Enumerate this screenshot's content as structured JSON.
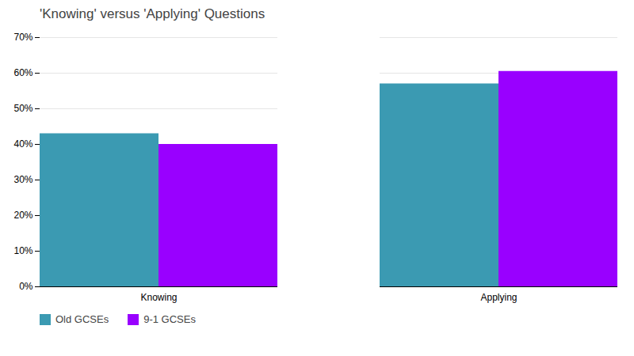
{
  "chart_data": {
    "type": "bar",
    "title": "'Knowing' versus 'Applying' Questions",
    "categories": [
      "Knowing",
      "Applying"
    ],
    "series": [
      {
        "name": "Old GCSEs",
        "values": [
          0.43,
          0.57
        ],
        "color": "#3b9ab2"
      },
      {
        "name": "9-1 GCSEs",
        "values": [
          0.4,
          0.605
        ],
        "color": "#9900ff"
      }
    ],
    "ylim": [
      0,
      0.7
    ],
    "yticks": [
      {
        "value": 0.0,
        "label": "0%"
      },
      {
        "value": 0.1,
        "label": "10%"
      },
      {
        "value": 0.2,
        "label": "20%"
      },
      {
        "value": 0.3,
        "label": "30%"
      },
      {
        "value": 0.4,
        "label": "40%"
      },
      {
        "value": 0.5,
        "label": "50%"
      },
      {
        "value": 0.6,
        "label": "60%"
      },
      {
        "value": 0.7,
        "label": "70%"
      }
    ],
    "grid": true,
    "legend": "lower left"
  }
}
